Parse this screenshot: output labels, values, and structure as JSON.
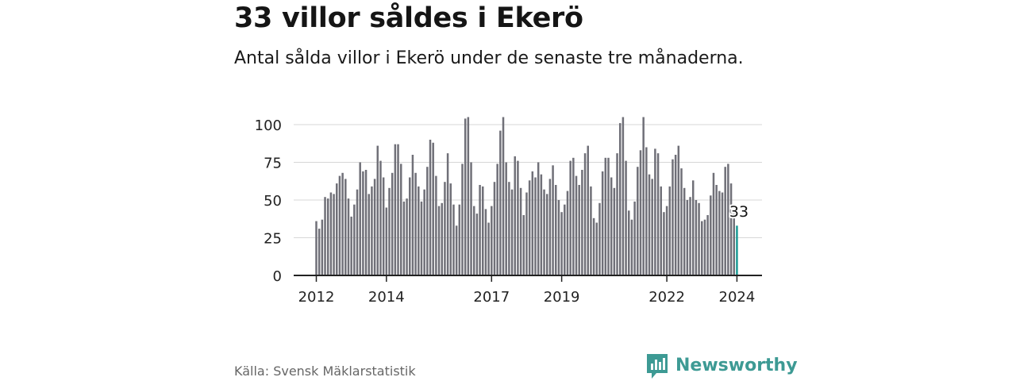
{
  "title": "33 villor såldes i Ekerö",
  "subtitle": "Antal sålda villor i Ekerö under de senaste tre månaderna.",
  "source": "Källa: Svensk Mäklarstatistik",
  "brand": {
    "name": "Newsworthy",
    "color": "#3d9a94"
  },
  "colors": {
    "bar": "#707078",
    "highlight": "#1a9a94",
    "grid": "#d7d7d7",
    "axis": "#222222"
  },
  "chart_data": {
    "type": "bar",
    "title": "33 villor såldes i Ekerö",
    "xlabel": "",
    "ylabel": "",
    "ylim": [
      0,
      110
    ],
    "yticks": [
      0,
      25,
      50,
      75,
      100
    ],
    "ytick_labels": [
      "0",
      "25",
      "50",
      "75",
      "100"
    ],
    "xticks": [
      {
        "index": 0,
        "label": "2012"
      },
      {
        "index": 24,
        "label": "2014"
      },
      {
        "index": 60,
        "label": "2017"
      },
      {
        "index": 84,
        "label": "2019"
      },
      {
        "index": 120,
        "label": "2022"
      },
      {
        "index": 144,
        "label": "2024"
      }
    ],
    "highlight_label": "33",
    "grid": true,
    "values": [
      36,
      31,
      37,
      52,
      51,
      55,
      54,
      61,
      66,
      68,
      64,
      51,
      39,
      47,
      57,
      75,
      69,
      70,
      54,
      59,
      64,
      86,
      76,
      65,
      45,
      58,
      68,
      87,
      87,
      74,
      49,
      51,
      65,
      80,
      68,
      59,
      49,
      57,
      72,
      90,
      88,
      66,
      46,
      48,
      62,
      81,
      61,
      47,
      33,
      47,
      74,
      104,
      105,
      75,
      46,
      41,
      60,
      59,
      44,
      35,
      46,
      62,
      74,
      96,
      105,
      75,
      62,
      57,
      79,
      76,
      58,
      40,
      55,
      63,
      69,
      65,
      75,
      67,
      57,
      54,
      64,
      73,
      60,
      50,
      42,
      47,
      56,
      76,
      78,
      66,
      60,
      70,
      81,
      86,
      59,
      38,
      35,
      48,
      69,
      78,
      78,
      65,
      58,
      81,
      101,
      105,
      76,
      43,
      37,
      49,
      72,
      83,
      105,
      85,
      67,
      64,
      84,
      81,
      59,
      42,
      46,
      59,
      77,
      80,
      86,
      71,
      58,
      50,
      52,
      63,
      50,
      48,
      36,
      37,
      40,
      53,
      68,
      60,
      56,
      55,
      72,
      74,
      61,
      41,
      33
    ]
  }
}
